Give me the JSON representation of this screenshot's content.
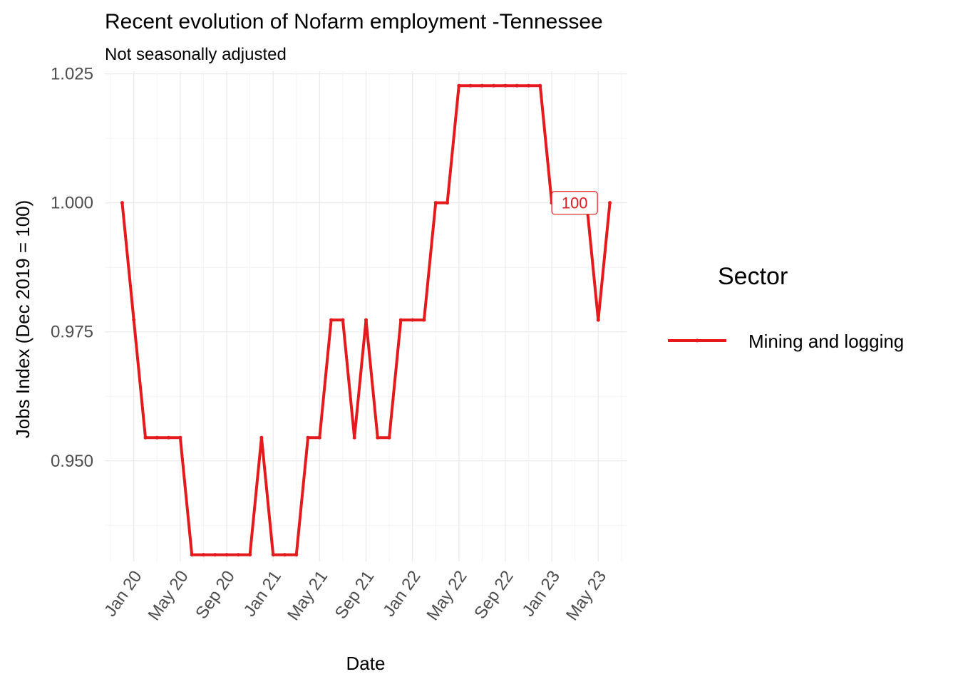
{
  "chart_data": {
    "type": "line",
    "title": "Recent evolution of Nofarm employment -Tennessee",
    "subtitle": "Not seasonally adjusted",
    "xlabel": "Date",
    "ylabel": "Jobs Index (Dec 2019 = 100)",
    "ylim": [
      0.9305,
      1.0255
    ],
    "yticks": [
      0.95,
      0.975,
      1.0,
      1.025
    ],
    "ytick_labels": [
      "0.950",
      "0.975",
      "1.000",
      "1.025"
    ],
    "xticks": [
      "2020-01",
      "2020-05",
      "2020-09",
      "2021-01",
      "2021-05",
      "2021-09",
      "2022-01",
      "2022-05",
      "2022-09",
      "2023-01",
      "2023-05"
    ],
    "xtick_labels": [
      "Jan 20",
      "May 20",
      "Sep 20",
      "Jan 21",
      "May 21",
      "Sep 21",
      "Jan 22",
      "May 22",
      "Sep 22",
      "Jan 23",
      "May 23"
    ],
    "x_range": [
      "2019-11",
      "2023-07"
    ],
    "grid": true,
    "legend": {
      "title": "Sector",
      "position": "right"
    },
    "series": [
      {
        "name": "Mining and logging",
        "color": "#e41a1c",
        "x": [
          "2019-12",
          "2020-01",
          "2020-02",
          "2020-03",
          "2020-04",
          "2020-05",
          "2020-06",
          "2020-07",
          "2020-08",
          "2020-09",
          "2020-10",
          "2020-11",
          "2020-12",
          "2021-01",
          "2021-02",
          "2021-03",
          "2021-04",
          "2021-05",
          "2021-06",
          "2021-07",
          "2021-08",
          "2021-09",
          "2021-10",
          "2021-11",
          "2021-12",
          "2022-01",
          "2022-02",
          "2022-03",
          "2022-04",
          "2022-05",
          "2022-06",
          "2022-07",
          "2022-08",
          "2022-09",
          "2022-10",
          "2022-11",
          "2022-12",
          "2023-01",
          "2023-02",
          "2023-03",
          "2023-04",
          "2023-05",
          "2023-06"
        ],
        "values": [
          1.0,
          0.9773,
          0.9545,
          0.9545,
          0.9545,
          0.9545,
          0.9318,
          0.9318,
          0.9318,
          0.9318,
          0.9318,
          0.9318,
          0.9545,
          0.9318,
          0.9318,
          0.9318,
          0.9545,
          0.9545,
          0.9773,
          0.9773,
          0.9545,
          0.9773,
          0.9545,
          0.9545,
          0.9773,
          0.9773,
          0.9773,
          1.0,
          1.0,
          1.0227,
          1.0227,
          1.0227,
          1.0227,
          1.0227,
          1.0227,
          1.0227,
          1.0227,
          1.0,
          1.0,
          1.0,
          1.0,
          0.9773,
          1.0
        ]
      }
    ],
    "annotations": [
      {
        "text": "100",
        "x": "2023-01",
        "y": 1.0
      }
    ]
  }
}
